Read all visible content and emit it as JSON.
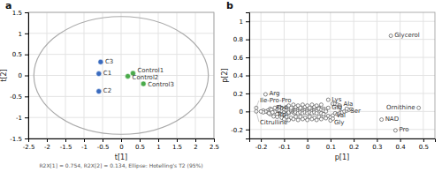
{
  "chart_data": [
    {
      "type": "scatter",
      "title": "a",
      "x_label": "t[1]",
      "y_label": "t[2]",
      "xlim": [
        -2.5,
        2.5
      ],
      "ylim": [
        -1.5,
        1.5
      ],
      "xticks": [
        -2.5,
        -2,
        -1.5,
        -1,
        -0.5,
        0,
        0.5,
        1,
        1.5,
        2,
        2.5
      ],
      "yticks": [
        -1.5,
        -1,
        -0.5,
        0,
        0.5,
        1,
        1.5
      ],
      "grid": true,
      "annotations": [
        "R2X[1] = 0.754, R2X[2] = 0.134, Ellipse: Hotelling's T2 (95%)"
      ],
      "ellipse": {
        "cx": 0.0,
        "cy": 0.0,
        "width": 4.7,
        "height": 2.8,
        "angle": 0,
        "color": "#aaaaaa"
      },
      "series": [
        {
          "color": "#4aaa4a",
          "marker": "circle",
          "x": [
            0.32,
            0.18,
            0.6
          ],
          "values": [
            0.05,
            -0.02,
            -0.2
          ],
          "labels": [
            "Control1",
            "Control2",
            "Control3"
          ]
        },
        {
          "color": "#3a6bbf",
          "marker": "circle",
          "x": [
            -0.55,
            -0.6,
            -0.6
          ],
          "values": [
            0.32,
            0.04,
            -0.38
          ],
          "labels": [
            "C3",
            "C1",
            "C2"
          ]
        }
      ]
    },
    {
      "type": "scatter",
      "title": "b",
      "x_label": "p[1]",
      "y_label": "p[2]",
      "xlim": [
        -0.25,
        0.55
      ],
      "ylim": [
        -0.3,
        1.1
      ],
      "xticks": [
        -0.2,
        -0.1,
        0,
        0.1,
        0.2,
        0.3,
        0.4,
        0.5
      ],
      "yticks": [
        -0.2,
        0,
        0.2,
        0.4,
        0.6,
        0.8,
        1.0
      ],
      "grid": true,
      "series": [
        {
          "color": "#555555",
          "marker": "open-circle",
          "x": [
            -0.13,
            -0.12,
            -0.11,
            -0.1,
            -0.09,
            -0.12,
            -0.11,
            -0.1,
            -0.09,
            -0.08,
            -0.11,
            -0.1,
            -0.09,
            -0.14,
            -0.13,
            -0.08,
            -0.08,
            -0.07,
            -0.07,
            -0.06,
            -0.06,
            -0.055,
            -0.055,
            -0.055,
            -0.05,
            -0.05,
            -0.05,
            -0.04,
            -0.04,
            -0.04,
            -0.03,
            -0.03,
            -0.03,
            -0.02,
            -0.02,
            -0.02,
            -0.01,
            -0.01,
            -0.01,
            0.0,
            0.0,
            0.0,
            0.01,
            0.01,
            0.01,
            0.02,
            0.02,
            0.02,
            0.03,
            0.03,
            0.03,
            0.04,
            0.04,
            0.04,
            -0.16,
            -0.16,
            -0.16,
            -0.14,
            -0.12,
            -0.09,
            -0.07,
            -0.05,
            -0.03,
            -0.01,
            0.01,
            0.03,
            0.05,
            -0.13,
            -0.11,
            -0.09,
            -0.07,
            -0.05,
            -0.03,
            -0.01,
            0.01,
            0.03,
            0.05,
            0.07,
            0.09,
            -0.08,
            -0.06,
            -0.04,
            -0.02,
            0.0,
            0.02,
            0.04,
            0.06,
            -0.1,
            -0.08,
            -0.06,
            -0.04,
            -0.02,
            0.0,
            0.02,
            0.04,
            0.06,
            0.08,
            0.1,
            0.11,
            0.11,
            0.12,
            0.13,
            0.14,
            0.12,
            0.13,
            0.14,
            0.15,
            0.16,
            0.17,
            0.18,
            0.19,
            -0.17,
            -0.17,
            -0.18,
            -0.19,
            -0.19,
            -0.2,
            -0.155,
            -0.165,
            0.05,
            0.06,
            0.07,
            0.07,
            0.08,
            0.08,
            0.06,
            0.07
          ],
          "values": [
            0.025,
            0.01,
            0.0,
            -0.01,
            0.005,
            -0.02,
            -0.03,
            -0.04,
            -0.03,
            -0.02,
            0.035,
            0.025,
            0.015,
            -0.005,
            -0.03,
            0.01,
            -0.01,
            0.005,
            0.02,
            0.01,
            -0.01,
            0.02,
            0.0,
            -0.02,
            0.03,
            0.01,
            -0.01,
            0.02,
            0.0,
            -0.02,
            0.03,
            0.01,
            -0.01,
            0.02,
            0.0,
            -0.02,
            0.03,
            0.01,
            -0.01,
            0.02,
            0.0,
            -0.02,
            0.03,
            0.01,
            -0.01,
            0.02,
            0.0,
            -0.02,
            0.03,
            0.01,
            -0.01,
            0.02,
            0.0,
            -0.02,
            0.03,
            0.0,
            -0.03,
            0.04,
            0.05,
            0.05,
            0.04,
            0.05,
            0.04,
            0.05,
            0.04,
            0.05,
            0.04,
            -0.06,
            -0.07,
            -0.06,
            -0.07,
            -0.06,
            -0.06,
            -0.07,
            -0.06,
            -0.07,
            -0.06,
            -0.055,
            -0.05,
            0.065,
            0.075,
            0.065,
            0.075,
            0.065,
            0.075,
            0.065,
            0.075,
            -0.085,
            -0.095,
            -0.085,
            -0.095,
            -0.085,
            -0.095,
            -0.085,
            -0.095,
            -0.085,
            -0.075,
            -0.065,
            -0.045,
            0.085,
            0.085,
            0.075,
            0.065,
            -0.02,
            -0.03,
            -0.02,
            -0.01,
            0.0,
            0.01,
            0.02,
            0.025,
            0.01,
            -0.01,
            0.0,
            0.01,
            -0.01,
            0.0,
            0.02,
            -0.02,
            0.03,
            0.02,
            0.03,
            0.01,
            0.02,
            0.0,
            -0.02,
            -0.03
          ]
        },
        {
          "color": "#555555",
          "marker": "open-circle",
          "x": [
            0.36,
            -0.18,
            -0.22,
            -0.22,
            -0.15,
            -0.145,
            0.09,
            0.14,
            0.17,
            0.48,
            0.38,
            0.32,
            0.1,
            0.11,
            0.09
          ],
          "values": [
            0.84,
            0.19,
            0.04,
            0.0,
            -0.01,
            -0.055,
            0.13,
            0.05,
            0.03,
            0.04,
            -0.21,
            -0.09,
            -0.1,
            -0.08,
            0.04
          ],
          "labels": [
            "Glycerol",
            "Arg",
            "Ile-Pro-Pro",
            "Citrulline",
            "Phe",
            "Trp",
            "Lys",
            "Ala",
            "Ser",
            "Ornithine",
            "Pro",
            "NAD",
            "Gly",
            "Val",
            "Glg"
          ]
        }
      ]
    }
  ]
}
